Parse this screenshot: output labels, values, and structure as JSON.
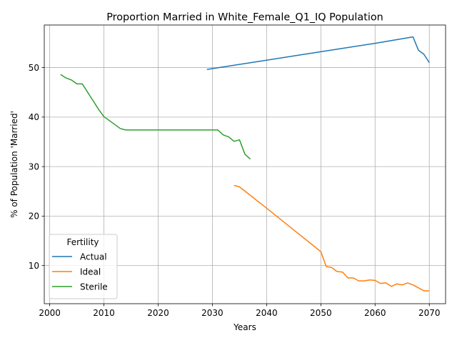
{
  "chart_data": {
    "type": "line",
    "title": "Proportion Married in White_Female_Q1_IQ Population",
    "xlabel": "Years",
    "ylabel": "% of Population 'Married'",
    "xlim": [
      1999,
      2073
    ],
    "ylim": [
      2.3,
      58.6
    ],
    "xticks": [
      2000,
      2010,
      2020,
      2030,
      2040,
      2050,
      2060,
      2070
    ],
    "yticks": [
      10,
      20,
      30,
      40,
      50
    ],
    "grid": true,
    "legend": {
      "title": "Fertility",
      "position": "lower-left"
    },
    "series": [
      {
        "name": "Actual",
        "color": "#1f77b4",
        "points": [
          [
            2029,
            49.6
          ],
          [
            2030,
            49.8
          ],
          [
            2040,
            51.5
          ],
          [
            2050,
            53.2
          ],
          [
            2060,
            54.9
          ],
          [
            2067,
            56.2
          ],
          [
            2068,
            53.5
          ],
          [
            2069,
            52.7
          ],
          [
            2070,
            51.0
          ]
        ]
      },
      {
        "name": "Ideal",
        "color": "#ff7f0e",
        "points": [
          [
            2034,
            26.2
          ],
          [
            2035,
            25.9
          ],
          [
            2040,
            21.6
          ],
          [
            2045,
            17.2
          ],
          [
            2049,
            13.7
          ],
          [
            2050,
            12.8
          ],
          [
            2051,
            9.8
          ],
          [
            2052,
            9.6
          ],
          [
            2053,
            8.8
          ],
          [
            2054,
            8.7
          ],
          [
            2055,
            7.5
          ],
          [
            2056,
            7.5
          ],
          [
            2057,
            6.9
          ],
          [
            2058,
            6.9
          ],
          [
            2059,
            7.1
          ],
          [
            2060,
            7.0
          ],
          [
            2061,
            6.4
          ],
          [
            2062,
            6.5
          ],
          [
            2063,
            5.8
          ],
          [
            2064,
            6.3
          ],
          [
            2065,
            6.1
          ],
          [
            2066,
            6.5
          ],
          [
            2067,
            6.1
          ],
          [
            2068,
            5.5
          ],
          [
            2069,
            4.9
          ],
          [
            2070,
            4.9
          ]
        ]
      },
      {
        "name": "Sterile",
        "color": "#2ca02c",
        "points": [
          [
            2002,
            48.6
          ],
          [
            2003,
            47.9
          ],
          [
            2004,
            47.5
          ],
          [
            2005,
            46.7
          ],
          [
            2006,
            46.7
          ],
          [
            2007,
            45.0
          ],
          [
            2008,
            43.3
          ],
          [
            2009,
            41.6
          ],
          [
            2010,
            40.1
          ],
          [
            2011,
            39.3
          ],
          [
            2012,
            38.5
          ],
          [
            2013,
            37.7
          ],
          [
            2014,
            37.4
          ],
          [
            2015,
            37.4
          ],
          [
            2020,
            37.4
          ],
          [
            2025,
            37.4
          ],
          [
            2030,
            37.4
          ],
          [
            2031,
            37.4
          ],
          [
            2032,
            36.4
          ],
          [
            2033,
            36.0
          ],
          [
            2034,
            35.1
          ],
          [
            2035,
            35.4
          ],
          [
            2036,
            32.5
          ],
          [
            2037,
            31.5
          ]
        ]
      }
    ]
  }
}
